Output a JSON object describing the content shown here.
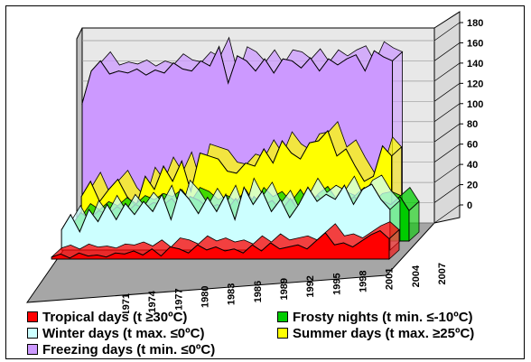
{
  "chart_data": {
    "type": "area",
    "style": "3d-stacked-depth",
    "title": "",
    "xlabel": "",
    "ylabel": "",
    "ylim": [
      0,
      180
    ],
    "y_ticks": [
      0,
      20,
      40,
      60,
      80,
      100,
      120,
      140,
      160,
      180
    ],
    "x_start": 1969,
    "x_end": 2007,
    "x_tick_labels": [
      "1971",
      "1974",
      "1977",
      "1980",
      "1983",
      "1986",
      "1989",
      "1992",
      "1995",
      "1998",
      "2001",
      "2004",
      "2007"
    ],
    "grid": true,
    "legend_position": "bottom",
    "series": [
      {
        "name": "Freezing days (t min. ≤0ºC)",
        "color": "#cc99ff",
        "x": [
          1969,
          1970,
          1971,
          1972,
          1973,
          1974,
          1975,
          1976,
          1977,
          1978,
          1979,
          1980,
          1981,
          1982,
          1983,
          1984,
          1985,
          1986,
          1987,
          1988,
          1989,
          1990,
          1991,
          1992,
          1993,
          1994,
          1995,
          1996,
          1997,
          1998,
          1999,
          2000,
          2001,
          2002,
          2003
        ],
        "values": [
          118,
          150,
          160,
          147,
          150,
          148,
          152,
          146,
          151,
          148,
          158,
          152,
          150,
          160,
          155,
          174,
          138,
          165,
          160,
          150,
          162,
          148,
          162,
          160,
          153,
          163,
          150,
          162,
          156,
          162,
          166,
          150,
          170,
          164,
          160
        ]
      },
      {
        "name": "Summer days (t max. ≥25ºC)",
        "color": "#ffff00",
        "x": [
          1970,
          1971,
          1972,
          1973,
          1974,
          1975,
          1976,
          1977,
          1978,
          1979,
          1980,
          1981,
          1982,
          1983,
          1984,
          1985,
          1986,
          1987,
          1988,
          1989,
          1990,
          1991,
          1992,
          1993,
          1994,
          1995,
          1996,
          1997,
          1998,
          1999,
          2000,
          2001,
          2002,
          2003,
          2004
        ],
        "values": [
          35,
          50,
          30,
          42,
          52,
          35,
          25,
          55,
          42,
          65,
          50,
          70,
          40,
          78,
          75,
          72,
          60,
          58,
          68,
          65,
          82,
          68,
          90,
          78,
          72,
          88,
          90,
          100,
          75,
          82,
          65,
          50,
          55,
          85,
          75
        ]
      },
      {
        "name": "Frosty nights (t min. ≤-10ºC)",
        "color": "#00cc00",
        "x": [
          1970,
          1971,
          1972,
          1973,
          1974,
          1975,
          1976,
          1977,
          1978,
          1979,
          1980,
          1981,
          1982,
          1983,
          1984,
          1985,
          1986,
          1987,
          1988,
          1989,
          1990,
          1991,
          1992,
          1993,
          1994,
          1995,
          1996,
          1997,
          1998,
          1999,
          2000,
          2001,
          2002,
          2003,
          2004,
          2005,
          2006,
          2007
        ],
        "values": [
          15,
          28,
          22,
          30,
          26,
          34,
          28,
          36,
          32,
          38,
          35,
          42,
          30,
          44,
          40,
          32,
          36,
          30,
          42,
          28,
          44,
          35,
          40,
          30,
          42,
          28,
          38,
          45,
          32,
          40,
          36,
          44,
          30,
          38,
          40,
          36,
          44,
          30
        ]
      },
      {
        "name": "Winter days (t max. ≤0ºC)",
        "color": "#ccffff",
        "x": [
          1970,
          1971,
          1972,
          1973,
          1974,
          1975,
          1976,
          1977,
          1978,
          1979,
          1980,
          1981,
          1982,
          1983,
          1984,
          1985,
          1986,
          1987,
          1988,
          1989,
          1990,
          1991,
          1992,
          1993,
          1994,
          1995,
          1996,
          1997,
          1998,
          1999,
          2000,
          2001,
          2002,
          2003,
          2004,
          2005,
          2006
        ],
        "values": [
          20,
          35,
          18,
          40,
          28,
          45,
          30,
          46,
          35,
          48,
          38,
          55,
          30,
          60,
          50,
          36,
          52,
          38,
          55,
          30,
          62,
          45,
          58,
          38,
          50,
          32,
          45,
          62,
          48,
          55,
          50,
          64,
          45,
          60,
          65,
          50,
          40
        ]
      },
      {
        "name": "Tropical days (t ≥30ºC)",
        "color": "#ff0000",
        "x": [
          1970,
          1971,
          1972,
          1973,
          1974,
          1975,
          1976,
          1977,
          1978,
          1979,
          1980,
          1981,
          1982,
          1983,
          1984,
          1985,
          1986,
          1987,
          1988,
          1989,
          1990,
          1991,
          1992,
          1993,
          1994,
          1995,
          1996,
          1997,
          1998,
          1999,
          2000,
          2001,
          2002,
          2003,
          2004,
          2005,
          2006,
          2007
        ],
        "values": [
          2,
          5,
          1,
          6,
          3,
          4,
          2,
          6,
          5,
          8,
          4,
          10,
          3,
          12,
          10,
          6,
          14,
          9,
          12,
          8,
          10,
          6,
          14,
          8,
          16,
          10,
          12,
          14,
          10,
          18,
          26,
          14,
          16,
          12,
          18,
          24,
          28,
          20
        ]
      }
    ]
  },
  "legend": {
    "items": [
      {
        "label": "Tropical days (t ≥30ºC)",
        "color": "#ff0000"
      },
      {
        "label": "Frosty nights (t min. ≤-10ºC)",
        "color": "#00cc00"
      },
      {
        "label": "Winter days (t max. ≤0ºC)",
        "color": "#ccffff"
      },
      {
        "label": "Summer days (t max. ≥25ºC)",
        "color": "#ffff00"
      },
      {
        "label": "Freezing days (t min. ≤0ºC)",
        "color": "#cc99ff"
      }
    ]
  }
}
